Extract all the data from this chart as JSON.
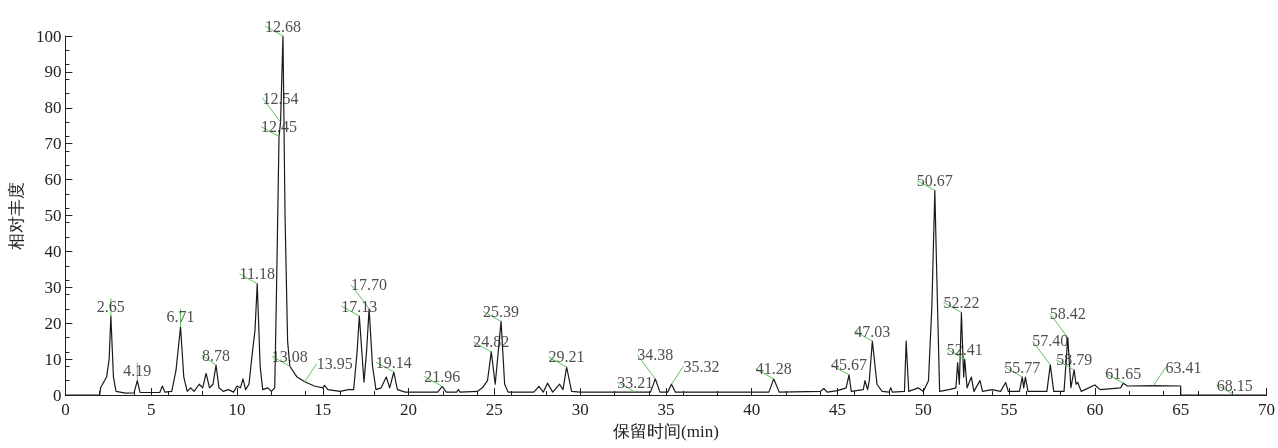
{
  "chart_data": {
    "type": "line",
    "xlabel": "保留时间(min)",
    "ylabel": "相对丰度",
    "xlim": [
      0,
      70
    ],
    "xticks": [
      0,
      5,
      10,
      15,
      20,
      25,
      30,
      35,
      40,
      45,
      50,
      55,
      60,
      65,
      70
    ],
    "ylim": [
      0,
      100
    ],
    "yticks": [
      0,
      10,
      20,
      30,
      40,
      50,
      60,
      70,
      80,
      90,
      100
    ],
    "grid": false,
    "marker": "none",
    "line_style": "solid",
    "series": [
      {
        "color": "#1a1a1a",
        "x": [
          0,
          2.0,
          2.05,
          2.4,
          2.55,
          2.65,
          2.8,
          2.95,
          3.5,
          4.0,
          4.19,
          4.35,
          5.5,
          5.65,
          5.8,
          6.2,
          6.45,
          6.71,
          6.9,
          7.1,
          7.3,
          7.5,
          7.8,
          8.0,
          8.2,
          8.4,
          8.6,
          8.78,
          8.95,
          9.2,
          9.5,
          9.8,
          10.0,
          10.2,
          10.35,
          10.5,
          10.7,
          10.9,
          11.05,
          11.18,
          11.35,
          11.5,
          11.8,
          12.0,
          12.2,
          12.3,
          12.45,
          12.54,
          12.68,
          12.8,
          12.95,
          13.08,
          13.5,
          13.95,
          14.5,
          15.0,
          15.1,
          15.3,
          16.0,
          16.5,
          16.8,
          17.0,
          17.13,
          17.4,
          17.55,
          17.7,
          17.9,
          18.1,
          18.4,
          18.7,
          18.9,
          19.14,
          19.35,
          19.8,
          21.7,
          21.96,
          22.2,
          22.8,
          22.9,
          23.0,
          24.0,
          24.3,
          24.6,
          24.82,
          25.05,
          25.39,
          25.6,
          25.8,
          27.3,
          27.6,
          27.85,
          28.1,
          28.4,
          28.8,
          29.0,
          29.21,
          29.5,
          30,
          33.21,
          34.1,
          34.38,
          34.65,
          35.1,
          35.32,
          35.55,
          41.0,
          41.28,
          41.6,
          44.0,
          44.2,
          44.4,
          45.0,
          45.5,
          45.67,
          45.8,
          46.5,
          46.6,
          46.75,
          46.85,
          47.03,
          47.3,
          47.6,
          48.0,
          48.1,
          48.2,
          48.9,
          49.0,
          49.15,
          49.7,
          50.0,
          50.3,
          50.5,
          50.67,
          50.8,
          50.95,
          51.5,
          51.9,
          52.0,
          52.1,
          52.22,
          52.35,
          52.41,
          52.55,
          52.8,
          52.95,
          53.3,
          53.45,
          54.0,
          54.5,
          54.8,
          54.95,
          55.6,
          55.77,
          55.85,
          55.95,
          56.1,
          57.2,
          57.4,
          57.6,
          58.2,
          58.42,
          58.6,
          58.79,
          58.9,
          59.0,
          59.2,
          60.0,
          60.3,
          61.5,
          61.65,
          61.9,
          63.41,
          65.0,
          65.0,
          68.15,
          70
        ],
        "values": [
          0,
          0,
          2,
          5,
          10,
          22,
          5,
          1,
          0.5,
          0.6,
          4,
          0.7,
          0.7,
          2.5,
          0.8,
          1,
          7,
          19,
          5,
          1,
          2,
          1,
          3,
          2,
          6,
          2,
          3,
          8.3,
          2,
          1,
          1.5,
          0.8,
          2.5,
          2,
          4.5,
          1.5,
          3,
          12,
          18,
          31,
          8,
          1.5,
          2,
          1,
          2,
          28,
          72,
          76,
          100,
          50,
          15,
          8,
          5,
          3.7,
          2.5,
          2,
          2.7,
          1.5,
          1,
          1.5,
          1.5,
          12,
          22,
          3.6,
          12,
          24,
          8,
          1.5,
          2,
          5,
          2,
          6.4,
          1.5,
          0.8,
          0.8,
          2.4,
          0.8,
          0.8,
          1.5,
          0.8,
          1,
          2,
          4,
          12,
          3,
          20.5,
          3,
          0.8,
          0.8,
          2.4,
          0.8,
          3.3,
          0.8,
          3,
          1.5,
          7.8,
          1,
          0.8,
          0.8,
          0.8,
          4.5,
          0.8,
          0.8,
          3,
          0.8,
          0.8,
          4.5,
          0.8,
          1,
          1.8,
          0.8,
          1.2,
          2,
          5.6,
          1,
          1.5,
          4,
          1.5,
          4,
          15,
          3,
          1,
          0.8,
          2,
          0.8,
          1,
          15,
          1,
          2,
          1,
          4,
          25,
          57,
          30,
          1,
          1.5,
          2,
          9,
          3,
          23,
          5,
          10,
          2,
          5,
          1,
          4,
          1,
          1.5,
          1,
          3.5,
          1,
          1,
          5,
          2,
          5,
          1,
          1,
          8.4,
          1,
          1,
          16,
          2,
          7,
          3,
          3.5,
          1,
          2.8,
          1.5,
          2,
          3.3,
          2.5,
          2.6,
          2.5,
          0,
          0,
          0
        ]
      }
    ],
    "annotations": [
      {
        "text": "2.65",
        "x": 2.65,
        "y": 22
      },
      {
        "text": "4.19",
        "x": 4.19,
        "y": 4
      },
      {
        "text": "6.71",
        "x": 6.71,
        "y": 19
      },
      {
        "text": "8.78",
        "x": 8.78,
        "y": 8.3
      },
      {
        "text": "11.18",
        "x": 11.18,
        "y": 31
      },
      {
        "text": "12.45",
        "x": 12.45,
        "y": 72
      },
      {
        "text": "12.54",
        "x": 12.54,
        "y": 76
      },
      {
        "text": "12.68",
        "x": 12.68,
        "y": 100
      },
      {
        "text": "13.08",
        "x": 13.08,
        "y": 8
      },
      {
        "text": "13.95",
        "x": 13.95,
        "y": 3.7
      },
      {
        "text": "17.13",
        "x": 17.13,
        "y": 22
      },
      {
        "text": "17.70",
        "x": 17.7,
        "y": 24
      },
      {
        "text": "19.14",
        "x": 19.14,
        "y": 6.4
      },
      {
        "text": "21.96",
        "x": 21.96,
        "y": 2.4
      },
      {
        "text": "24.82",
        "x": 24.82,
        "y": 12
      },
      {
        "text": "25.39",
        "x": 25.39,
        "y": 20.5
      },
      {
        "text": "29.21",
        "x": 29.21,
        "y": 7.8
      },
      {
        "text": "33.21",
        "x": 33.21,
        "y": 0.8
      },
      {
        "text": "34.38",
        "x": 34.38,
        "y": 4.5
      },
      {
        "text": "35.32",
        "x": 35.32,
        "y": 3
      },
      {
        "text": "41.28",
        "x": 41.28,
        "y": 4.5
      },
      {
        "text": "45.67",
        "x": 45.67,
        "y": 5.6
      },
      {
        "text": "47.03",
        "x": 47.03,
        "y": 15
      },
      {
        "text": "50.67",
        "x": 50.67,
        "y": 57
      },
      {
        "text": "52.22",
        "x": 52.22,
        "y": 23
      },
      {
        "text": "52.41",
        "x": 52.41,
        "y": 10
      },
      {
        "text": "55.77",
        "x": 55.77,
        "y": 5
      },
      {
        "text": "57.40",
        "x": 57.4,
        "y": 8.4
      },
      {
        "text": "58.42",
        "x": 58.42,
        "y": 16
      },
      {
        "text": "58.79",
        "x": 58.79,
        "y": 7
      },
      {
        "text": "61.65",
        "x": 61.65,
        "y": 3.3
      },
      {
        "text": "63.41",
        "x": 63.41,
        "y": 2.6
      },
      {
        "text": "68.15",
        "x": 68.15,
        "y": 0
      }
    ]
  }
}
